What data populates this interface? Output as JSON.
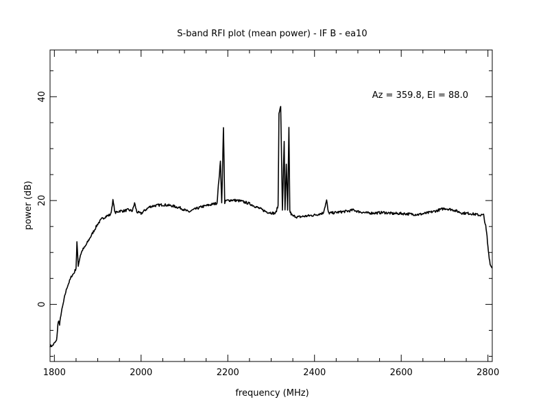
{
  "chart_data": {
    "type": "line",
    "title": "S-band RFI plot (mean power) - IF B - ea10",
    "xlabel": "frequency (MHz)",
    "ylabel": "power (dB)",
    "annotation": "Az = 359.8, El = 88.0",
    "xlim": [
      1790,
      2810
    ],
    "ylim": [
      -11,
      49
    ],
    "x_ticks": [
      1800,
      2000,
      2200,
      2400,
      2600,
      2800
    ],
    "y_ticks": [
      0,
      20,
      40
    ],
    "x_minor_step": 50,
    "y_minor_step": 5,
    "grid": false,
    "series": [
      {
        "color": "#000000",
        "x": [
          1790,
          1795,
          1800,
          1805,
          1808,
          1810,
          1812,
          1815,
          1820,
          1825,
          1830,
          1835,
          1840,
          1845,
          1850,
          1852,
          1855,
          1860,
          1865,
          1870,
          1880,
          1890,
          1900,
          1910,
          1920,
          1930,
          1935,
          1940,
          1950,
          1960,
          1970,
          1980,
          1985,
          1990,
          2000,
          2010,
          2020,
          2030,
          2050,
          2070,
          2090,
          2110,
          2120,
          2140,
          2160,
          2175,
          2183,
          2186,
          2190,
          2193,
          2196,
          2200,
          2210,
          2230,
          2250,
          2270,
          2290,
          2310,
          2316,
          2318,
          2322,
          2326,
          2330,
          2332,
          2335,
          2338,
          2341,
          2343,
          2346,
          2350,
          2355,
          2360,
          2380,
          2400,
          2420,
          2428,
          2432,
          2440,
          2460,
          2480,
          2490,
          2500,
          2520,
          2540,
          2560,
          2580,
          2600,
          2620,
          2640,
          2660,
          2680,
          2700,
          2720,
          2740,
          2760,
          2780,
          2790,
          2795,
          2798,
          2800,
          2803,
          2806,
          2810
        ],
        "y": [
          -8,
          -8,
          -7.5,
          -7,
          -4,
          -3,
          -4,
          -2,
          0,
          2,
          3.5,
          4.5,
          5.5,
          6,
          7,
          12,
          7.5,
          9.5,
          10.5,
          11,
          12.5,
          14,
          15.5,
          16.5,
          17,
          17.3,
          20,
          17.6,
          18,
          18,
          18.2,
          18,
          19.5,
          17.8,
          17.5,
          18.2,
          18.8,
          19,
          19.2,
          19,
          18.6,
          17.8,
          18.2,
          18.8,
          19.2,
          19.5,
          27.5,
          19.5,
          34,
          19.5,
          20,
          20,
          20.1,
          19.9,
          19.4,
          18.6,
          17.8,
          17.5,
          19,
          37,
          38,
          18,
          31.5,
          18,
          27,
          18,
          34,
          18,
          17.4,
          17,
          17,
          16.8,
          17,
          17.2,
          17.6,
          20,
          17.6,
          17.6,
          17.8,
          18,
          18.2,
          17.9,
          17.6,
          17.6,
          17.7,
          17.5,
          17.5,
          17.4,
          17.3,
          17.6,
          18,
          18.5,
          18.2,
          17.6,
          17.5,
          17.2,
          17.2,
          15,
          13,
          11,
          9,
          7.5,
          7
        ]
      }
    ]
  }
}
